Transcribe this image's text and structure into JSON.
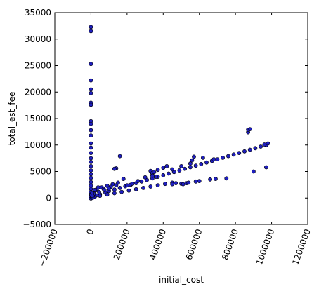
{
  "chart_data": {
    "type": "scatter",
    "title": "",
    "xlabel": "initial_cost",
    "ylabel": "total_est_fee",
    "xlim": [
      -200000,
      1200000
    ],
    "ylim": [
      -5000,
      35000
    ],
    "x_ticks": [
      -200000,
      0,
      200000,
      400000,
      600000,
      800000,
      1000000,
      1200000
    ],
    "x_tick_labels": [
      "−200000",
      "0",
      "200000",
      "400000",
      "600000",
      "800000",
      "1000000",
      "1200000"
    ],
    "y_ticks": [
      -5000,
      0,
      5000,
      10000,
      15000,
      20000,
      25000,
      30000,
      35000
    ],
    "y_tick_labels": [
      "−5000",
      "0",
      "5000",
      "10000",
      "15000",
      "20000",
      "25000",
      "30000",
      "35000"
    ],
    "x_tick_rotation": 70,
    "grid": false,
    "legend": "none",
    "marker_color": "#1f1fbf",
    "marker_edge_color": "#000000",
    "series": [
      {
        "points": [
          [
            0,
            32300
          ],
          [
            0,
            31500
          ],
          [
            0,
            25300
          ],
          [
            0,
            22200
          ],
          [
            0,
            20500
          ],
          [
            0,
            19800
          ],
          [
            0,
            18000
          ],
          [
            0,
            17600
          ],
          [
            0,
            14500
          ],
          [
            0,
            14000
          ],
          [
            0,
            12800
          ],
          [
            0,
            11800
          ],
          [
            0,
            10300
          ],
          [
            0,
            9500
          ],
          [
            0,
            8500
          ],
          [
            0,
            7500
          ],
          [
            0,
            6800
          ],
          [
            0,
            6000
          ],
          [
            0,
            5200
          ],
          [
            0,
            4500
          ],
          [
            0,
            3800
          ],
          [
            0,
            3000
          ],
          [
            0,
            2300
          ],
          [
            0,
            1700
          ],
          [
            0,
            1100
          ],
          [
            0,
            600
          ],
          [
            0,
            200
          ],
          [
            0,
            -100
          ],
          [
            10000,
            300
          ],
          [
            30000,
            500
          ],
          [
            50000,
            700
          ],
          [
            80000,
            1000
          ],
          [
            100000,
            1300
          ],
          [
            130000,
            1600
          ],
          [
            160000,
            1900
          ],
          [
            190000,
            2200
          ],
          [
            220000,
            2500
          ],
          [
            250000,
            2800
          ],
          [
            280000,
            3100
          ],
          [
            310000,
            3400
          ],
          [
            340000,
            3700
          ],
          [
            370000,
            4000
          ],
          [
            400000,
            4300
          ],
          [
            430000,
            4600
          ],
          [
            460000,
            4900
          ],
          [
            490000,
            5200
          ],
          [
            520000,
            5500
          ],
          [
            550000,
            5800
          ],
          [
            580000,
            6100
          ],
          [
            610000,
            6400
          ],
          [
            640000,
            6700
          ],
          [
            670000,
            7000
          ],
          [
            700000,
            7300
          ],
          [
            730000,
            7600
          ],
          [
            760000,
            7900
          ],
          [
            790000,
            8200
          ],
          [
            820000,
            8500
          ],
          [
            850000,
            8800
          ],
          [
            880000,
            9100
          ],
          [
            910000,
            9400
          ],
          [
            940000,
            9700
          ],
          [
            970000,
            10000
          ],
          [
            980000,
            10300
          ],
          [
            20000,
            150
          ],
          [
            50000,
            400
          ],
          [
            90000,
            650
          ],
          [
            130000,
            900
          ],
          [
            170000,
            1150
          ],
          [
            210000,
            1400
          ],
          [
            250000,
            1650
          ],
          [
            290000,
            1900
          ],
          [
            330000,
            2150
          ],
          [
            370000,
            2400
          ],
          [
            410000,
            2650
          ],
          [
            450000,
            2900
          ],
          [
            15000,
            800
          ],
          [
            25000,
            1400
          ],
          [
            35000,
            1800
          ],
          [
            60000,
            2000
          ],
          [
            90000,
            2300
          ],
          [
            120000,
            2600
          ],
          [
            150000,
            2900
          ],
          [
            180000,
            3600
          ],
          [
            200000,
            2400
          ],
          [
            230000,
            2700
          ],
          [
            260000,
            3200
          ],
          [
            300000,
            3900
          ],
          [
            340000,
            4600
          ],
          [
            20000,
            1500
          ],
          [
            40000,
            2000
          ],
          [
            70000,
            1700
          ],
          [
            110000,
            2100
          ],
          [
            140000,
            2400
          ],
          [
            140000,
            5600
          ],
          [
            130000,
            5500
          ],
          [
            160000,
            7900
          ],
          [
            330000,
            5100
          ],
          [
            340000,
            4700
          ],
          [
            350000,
            4900
          ],
          [
            340000,
            4200
          ],
          [
            360000,
            4000
          ],
          [
            370000,
            5300
          ],
          [
            400000,
            5700
          ],
          [
            420000,
            6000
          ],
          [
            450000,
            2600
          ],
          [
            470000,
            2800
          ],
          [
            500000,
            2700
          ],
          [
            510000,
            2600
          ],
          [
            530000,
            2800
          ],
          [
            450000,
            5400
          ],
          [
            500000,
            6000
          ],
          [
            550000,
            6500
          ],
          [
            560000,
            7100
          ],
          [
            570000,
            7800
          ],
          [
            620000,
            7600
          ],
          [
            680000,
            7300
          ],
          [
            660000,
            3500
          ],
          [
            690000,
            3600
          ],
          [
            750000,
            3700
          ],
          [
            600000,
            3200
          ],
          [
            580000,
            3100
          ],
          [
            540000,
            2900
          ],
          [
            870000,
            12400
          ],
          [
            870000,
            12900
          ],
          [
            880000,
            13000
          ],
          [
            900000,
            5000
          ],
          [
            970000,
            5800
          ],
          [
            960000,
            10100
          ],
          [
            5000,
            50
          ],
          [
            8000,
            120
          ],
          [
            12000,
            90
          ],
          [
            3000,
            600
          ],
          [
            6000,
            900
          ],
          [
            9000,
            400
          ],
          [
            45000,
            1100
          ],
          [
            75000,
            1500
          ],
          [
            100000,
            1800
          ]
        ]
      }
    ]
  }
}
